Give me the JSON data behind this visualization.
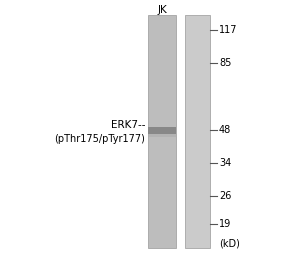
{
  "fig_width": 2.83,
  "fig_height": 2.64,
  "dpi": 100,
  "bg_color": "#ffffff",
  "lane_label": "JK",
  "lane_label_fontsize": 7.5,
  "mw_markers": [
    117,
    85,
    48,
    34,
    26,
    19
  ],
  "mw_fontsize": 7,
  "kd_label": "(kD)",
  "kd_fontsize": 7,
  "band_label_line1": "ERK7--",
  "band_label_line2": "(pThr175/pTyr177)",
  "band_label_fontsize": 7.5,
  "lane1_color": "#c0c0c0",
  "lane2_color": "#cccccc",
  "band_color": "#a0a0a0",
  "tick_color": "#555555",
  "border_color": "#999999"
}
